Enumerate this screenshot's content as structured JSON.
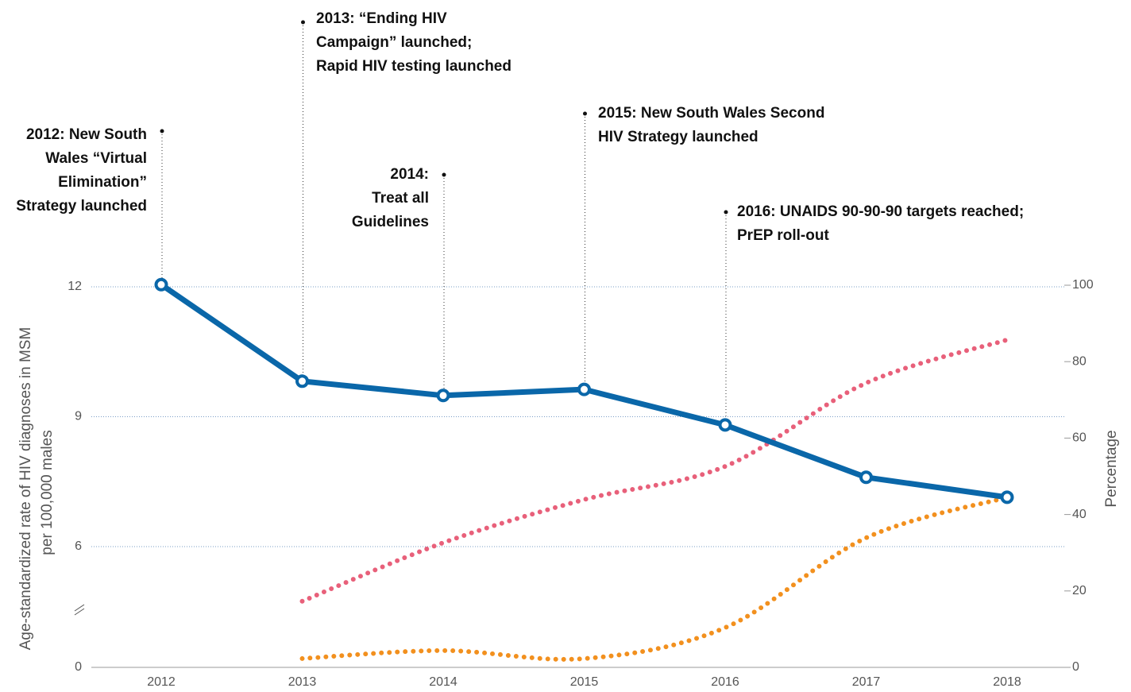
{
  "chart_data": {
    "type": "line",
    "categories": [
      "2012",
      "2013",
      "2014",
      "2015",
      "2016",
      "2017",
      "2018"
    ],
    "ylabel": [
      "Age-standardized rate of HIV diagnoses in MSM",
      "per 100,000 males"
    ],
    "y2label": "Percentage",
    "ylim": [
      0,
      12
    ],
    "yticks": [
      0,
      6,
      9,
      12
    ],
    "ybreak": [
      0,
      6
    ],
    "y2lim": [
      0,
      100
    ],
    "y2ticks": [
      0,
      20,
      40,
      60,
      80,
      100
    ],
    "grid": true,
    "series": [
      {
        "color": "#0a67a9",
        "values": [
          12.05,
          9.82,
          9.49,
          9.63,
          8.81,
          7.6,
          7.14
        ]
      },
      {
        "color": "#e8607a",
        "axis": "y2",
        "values": [
          null,
          17.3,
          32.6,
          43.9,
          52.6,
          74.4,
          85.7
        ]
      },
      {
        "color": "#f2901e",
        "axis": "y2",
        "values": [
          null,
          2.3,
          4.4,
          2.3,
          10.4,
          33.9,
          44.5
        ]
      }
    ],
    "annotations": [
      {
        "x": "2012",
        "lines": [
          "2012: New South",
          "Wales “Virtual",
          "Elimination”",
          "Strategy launched"
        ]
      },
      {
        "x": "2013",
        "lines": [
          "2013: “Ending HIV",
          "Campaign” launched;",
          "Rapid HIV testing launched"
        ]
      },
      {
        "x": "2014",
        "lines": [
          "2014:",
          "Treat all",
          "Guidelines"
        ]
      },
      {
        "x": "2015",
        "lines": [
          "2015: New South Wales Second",
          "HIV Strategy launched"
        ]
      },
      {
        "x": "2016",
        "lines": [
          "2016: UNAIDS 90-90-90 targets reached;",
          "PrEP roll-out"
        ]
      }
    ]
  }
}
